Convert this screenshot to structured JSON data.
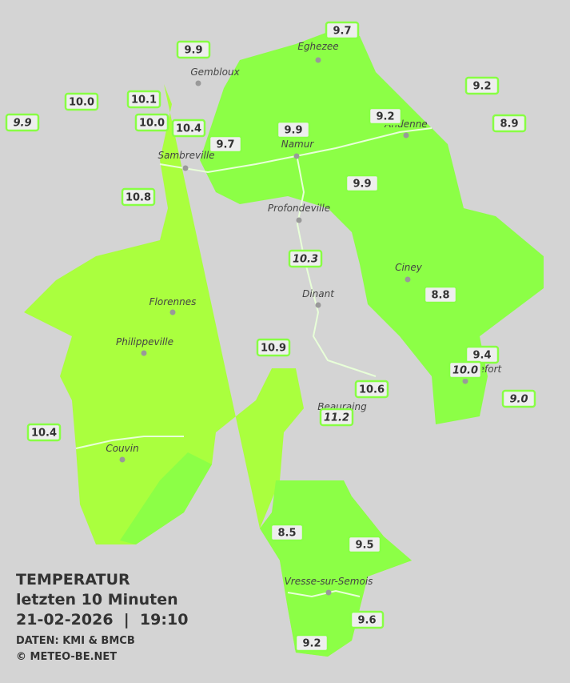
{
  "stations": [
    "9.7",
    "9.9",
    "10.0",
    "10.1",
    "9.2",
    "9.9",
    "10.0",
    "10.4",
    "9.9",
    "9.2",
    "8.9",
    "9.7",
    "9.9",
    "10.8",
    "10.3",
    "8.8",
    "10.9",
    "9.4",
    "10.0",
    "9.0",
    "10.6",
    "11.2",
    "10.4",
    "8.5",
    "9.5",
    "9.6",
    "9.2"
  ],
  "cities": [
    "Eghezee",
    "Gembloux",
    "Andenne",
    "Namur",
    "Sambreville",
    "Profondeville",
    "Ciney",
    "Florennes",
    "Dinant",
    "Philippeville",
    "Couvin",
    "Rochefort",
    "Beauraing",
    "Vresse-sur-Semois"
  ],
  "caption": {
    "title": "TEMPERATUR",
    "period": "letzten 10 Minuten",
    "datetime": "21-02-2026  |  19:10",
    "source": "DATEN: KMI & BMCB",
    "copyright": "© METEO-BE.NET"
  }
}
